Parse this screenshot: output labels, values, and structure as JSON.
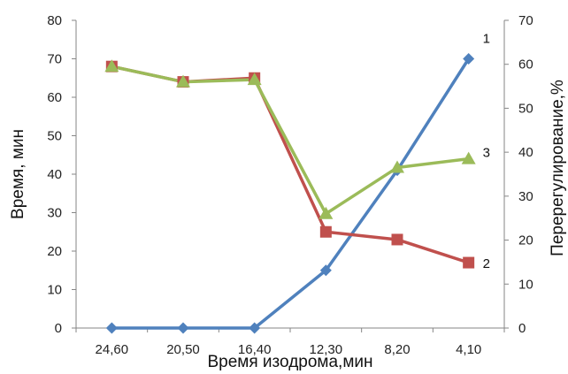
{
  "chart_data": {
    "type": "line",
    "categories": [
      "24,60",
      "20,50",
      "16,40",
      "12,30",
      "8,20",
      "4,10"
    ],
    "xlabel": "Время изодрома,мин",
    "ylabel": "Время, мин",
    "y2label": "Перерегулирование,%",
    "ylim": [
      0,
      80
    ],
    "y2lim": [
      0,
      70
    ],
    "yticks": [
      "0",
      "10",
      "20",
      "30",
      "40",
      "50",
      "60",
      "70",
      "80"
    ],
    "y2ticks": [
      "0",
      "10",
      "20",
      "30",
      "40",
      "50",
      "60",
      "70"
    ],
    "grid": false,
    "series": [
      {
        "label": "1",
        "axis": "left",
        "values": [
          0,
          0,
          0,
          15,
          41,
          70
        ],
        "color": "#4F81BD",
        "marker": "diamond"
      },
      {
        "label": "2",
        "axis": "left",
        "values": [
          68,
          64,
          65,
          25,
          23,
          17
        ],
        "color": "#C0504D",
        "marker": "square"
      },
      {
        "label": "3",
        "axis": "right",
        "values": [
          59.5,
          56,
          56.5,
          26,
          36.5,
          38.5
        ],
        "color": "#9BBB59",
        "marker": "triangle"
      }
    ]
  }
}
